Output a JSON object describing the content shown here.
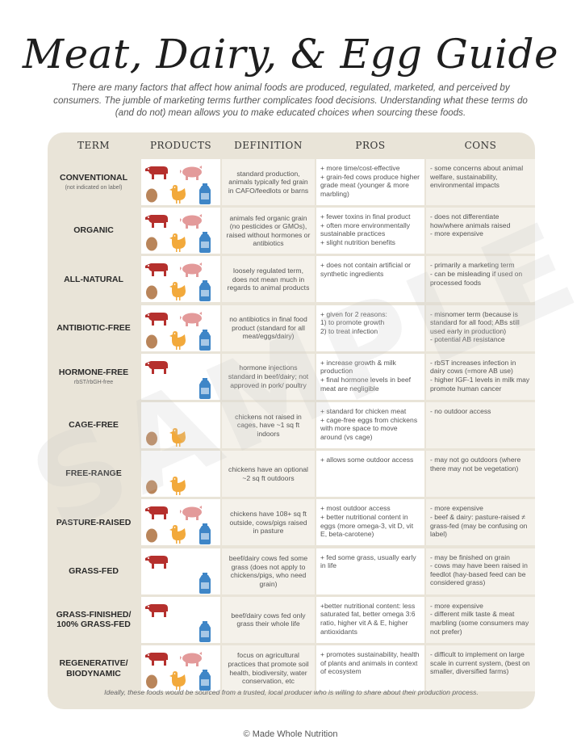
{
  "title": "Meat, Dairy, & Egg Guide",
  "intro": "There are many factors that affect how animal foods are produced, regulated, marketed, and perceived by consumers. The jumble of marketing terms further complicates food decisions. Understanding what these terms do (and do not) mean allows you to make educated choices when sourcing these foods.",
  "watermark": "SAMPLE",
  "headers": {
    "term": "TERM",
    "products": "PRODUCTS",
    "definition": "DEFINITION",
    "pros": "PROS",
    "cons": "CONS"
  },
  "colors": {
    "beef": "#b5302d",
    "pork": "#e39a9a",
    "egg": "#b9855a",
    "chicken": "#f2a93b",
    "milk": "#3f86c7",
    "panel": "#e9e4d8"
  },
  "rows": [
    {
      "term": "CONVENTIONAL",
      "note": "(not indicated on label)",
      "products": [
        "beef",
        "pork",
        "egg",
        "chicken",
        "milk"
      ],
      "definition": "standard production, animals typically fed grain in CAFO/feedlots or barns",
      "pros": "+ more time/cost-effective\n+ grain-fed cows produce higher grade meat (younger & more marbling)",
      "cons": "- some concerns about animal welfare, sustainability, environmental impacts"
    },
    {
      "term": "ORGANIC",
      "note": "",
      "products": [
        "beef",
        "pork",
        "egg",
        "chicken",
        "milk"
      ],
      "definition": "animals fed organic grain (no pesticides or GMOs), raised without hormones or antibiotics",
      "pros": "+ fewer toxins in final product\n+ often more environmentally sustainable practices\n+ slight nutrition benefits",
      "cons": "- does not differentiate how/where animals raised\n- more expensive"
    },
    {
      "term": "ALL-NATURAL",
      "note": "",
      "products": [
        "beef",
        "pork",
        "egg",
        "chicken",
        "milk"
      ],
      "definition": "loosely regulated term, does not mean much in regards to animal products",
      "pros": "+ does not contain artificial or synthetic ingredients",
      "cons": "- primarily a marketing term\n- can be misleading if used on processed foods"
    },
    {
      "term": "ANTIBIOTIC-FREE",
      "note": "",
      "products": [
        "beef",
        "pork",
        "egg",
        "chicken",
        "milk"
      ],
      "definition": "no antibiotics in final food product (standard for all meat/eggs/dairy)",
      "pros": "+ given for 2 reasons:\n1) to promote growth\n2) to treat infection",
      "cons": "- misnomer term (because is standard for all food; ABs still used early in production)\n- potential AB resistance"
    },
    {
      "term": "HORMONE-FREE",
      "note": "rbST/rbGH-free",
      "products": [
        "beef",
        "milk"
      ],
      "definition": "hormone injections standard in beef/dairy; not approved in pork/ poultry",
      "pros": "+ increase growth & milk production\n+ final hormone levels in beef meat are negligible",
      "cons": "- rbST increases infection in dairy cows (=more AB use)\n- higher IGF-1 levels in milk may promote human cancer"
    },
    {
      "term": "CAGE-FREE",
      "note": "",
      "products": [
        "egg",
        "chicken"
      ],
      "definition": "chickens not raised in cages, have ~1 sq ft indoors",
      "pros": "+ standard for chicken meat\n+ cage-free eggs from chickens with more space to move around (vs cage)",
      "cons": "- no outdoor access"
    },
    {
      "term": "FREE-RANGE",
      "note": "",
      "products": [
        "egg",
        "chicken"
      ],
      "definition": "chickens have an optional ~2 sq ft outdoors",
      "pros": "+ allows some outdoor access",
      "cons": "- may not go outdoors (where there may not be vegetation)"
    },
    {
      "term": "PASTURE-RAISED",
      "note": "",
      "products": [
        "beef",
        "pork",
        "egg",
        "chicken",
        "milk"
      ],
      "definition": "chickens have 108+ sq ft outside, cows/pigs raised in pasture",
      "pros": "+ most outdoor access\n+ better nutritional content in eggs (more omega-3, vit D, vit E, beta-carotene)",
      "cons": "- more expensive\n- beef & dairy: pasture-raised ≠ grass-fed (may be confusing on label)"
    },
    {
      "term": "GRASS-FED",
      "note": "",
      "products": [
        "beef",
        "milk"
      ],
      "definition": "beef/dairy cows fed some grass (does not apply to chickens/pigs, who need grain)",
      "pros": "+ fed some grass, usually early in life",
      "cons": "- may be finished on grain\n- cows may have been raised in feedlot (hay-based feed can be considered grass)"
    },
    {
      "term": "GRASS-FINISHED/ 100% GRASS-FED",
      "note": "",
      "products": [
        "beef",
        "milk"
      ],
      "definition": "beef/dairy cows fed only grass their whole life",
      "pros": "+better nutritional content: less saturated fat, better omega 3:6 ratio, higher vit A & E, higher antioxidants",
      "cons": "- more expensive\n- different milk taste & meat marbling (some consumers may not prefer)"
    },
    {
      "term": "REGENERATIVE/ BIODYNAMIC",
      "note": "",
      "products": [
        "beef",
        "pork",
        "egg",
        "chicken",
        "milk"
      ],
      "definition": "focus on agricultural practices that promote soil health, biodiversity, water conservation, etc",
      "pros": "+ promotes sustainability, health of plants and animals in context of ecosystem",
      "cons": "- difficult to implement on large scale in current system, (best on smaller, diversified farms)"
    }
  ],
  "footnote": "Ideally, these foods would be sourced from a trusted, local producer who is willing to share about their production process.",
  "copyright": "© Made Whole Nutrition"
}
